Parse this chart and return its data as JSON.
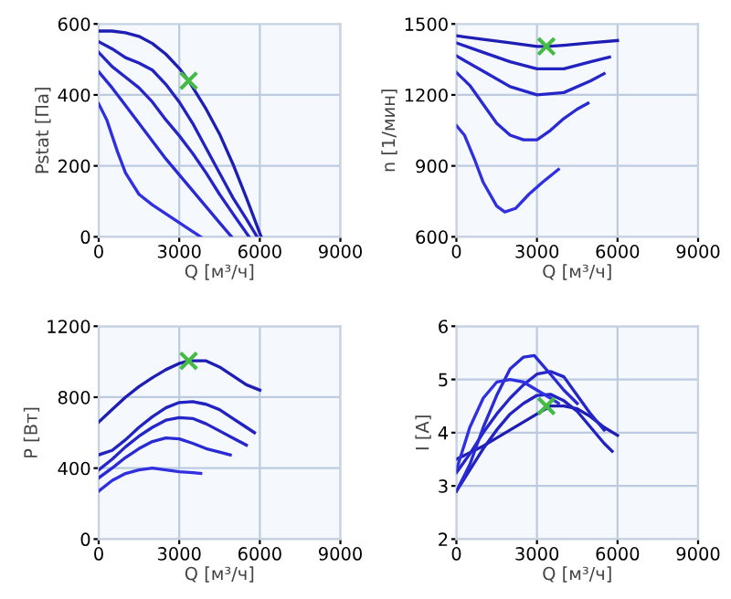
{
  "chart_data": [
    {
      "type": "line",
      "xlabel": "Q [м³/ч]",
      "ylabel": "Pstat [Па]",
      "xlim": [
        0,
        9000
      ],
      "xticks": [
        0,
        3000,
        6000,
        9000
      ],
      "ylim": [
        0,
        600
      ],
      "yticks": [
        0,
        200,
        400,
        600
      ],
      "grid": true,
      "series": [
        {
          "color": "#1e1eb4",
          "x": [
            0,
            500,
            1000,
            1500,
            2000,
            2500,
            3000,
            3350,
            4000,
            4500,
            5000,
            5500,
            6050
          ],
          "values": [
            580,
            580,
            575,
            565,
            545,
            515,
            475,
            440,
            360,
            290,
            205,
            110,
            0
          ]
        },
        {
          "color": "#2222c0",
          "x": [
            0,
            500,
            1000,
            1500,
            2000,
            2500,
            3000,
            3500,
            4000,
            4500,
            5000,
            5500,
            5900
          ],
          "values": [
            550,
            530,
            505,
            490,
            470,
            430,
            380,
            320,
            250,
            180,
            110,
            50,
            0
          ]
        },
        {
          "color": "#2626c8",
          "x": [
            0,
            500,
            1000,
            1500,
            2000,
            2500,
            3000,
            3500,
            4000,
            4500,
            5000,
            5600
          ],
          "values": [
            520,
            480,
            450,
            420,
            380,
            330,
            285,
            235,
            180,
            120,
            65,
            0
          ]
        },
        {
          "color": "#2a2ad4",
          "x": [
            0,
            500,
            1000,
            1500,
            2000,
            2500,
            3000,
            3500,
            4000,
            4500,
            4950
          ],
          "values": [
            465,
            420,
            370,
            320,
            270,
            220,
            175,
            130,
            85,
            40,
            0
          ]
        },
        {
          "color": "#3030e0",
          "x": [
            0,
            300,
            700,
            1000,
            1500,
            2000,
            2500,
            3000,
            3500,
            3800
          ],
          "values": [
            375,
            330,
            240,
            180,
            120,
            90,
            65,
            40,
            15,
            0
          ]
        },
        {
          "type": "scatter",
          "marker": "cross",
          "color": "#44bb44",
          "x": [
            3350
          ],
          "values": [
            440
          ]
        }
      ]
    },
    {
      "type": "line",
      "xlabel": "Q [м³/ч]",
      "ylabel": "n [1/мин]",
      "xlim": [
        0,
        9000
      ],
      "xticks": [
        0,
        3000,
        6000,
        9000
      ],
      "ylim": [
        600,
        1500
      ],
      "yticks": [
        600,
        900,
        1200,
        1500
      ],
      "grid": true,
      "series": [
        {
          "color": "#1e1eb4",
          "x": [
            0,
            1000,
            2000,
            3000,
            3350,
            4000,
            5000,
            6000
          ],
          "values": [
            1450,
            1435,
            1420,
            1405,
            1405,
            1410,
            1420,
            1430
          ]
        },
        {
          "color": "#2222c0",
          "x": [
            0,
            1000,
            2000,
            3000,
            4000,
            5000,
            5700
          ],
          "values": [
            1420,
            1380,
            1340,
            1310,
            1310,
            1340,
            1360
          ]
        },
        {
          "color": "#2626c8",
          "x": [
            0,
            1000,
            2000,
            3000,
            4000,
            5000,
            5500
          ],
          "values": [
            1365,
            1300,
            1235,
            1200,
            1210,
            1260,
            1290
          ]
        },
        {
          "color": "#2a2ad4",
          "x": [
            0,
            500,
            1000,
            1500,
            2000,
            2500,
            3000,
            3500,
            4000,
            4500,
            4900
          ],
          "values": [
            1295,
            1240,
            1160,
            1080,
            1030,
            1010,
            1010,
            1050,
            1100,
            1140,
            1165
          ]
        },
        {
          "color": "#3030e0",
          "x": [
            0,
            300,
            700,
            1000,
            1500,
            1800,
            2200,
            2700,
            3200,
            3800
          ],
          "values": [
            1070,
            1030,
            920,
            830,
            730,
            705,
            720,
            780,
            830,
            885
          ]
        },
        {
          "type": "scatter",
          "marker": "cross",
          "color": "#44bb44",
          "x": [
            3350
          ],
          "values": [
            1405
          ]
        }
      ]
    },
    {
      "type": "line",
      "xlabel": "Q [м³/ч]",
      "ylabel": "P [Вт]",
      "xlim": [
        0,
        9000
      ],
      "xticks": [
        0,
        3000,
        6000,
        9000
      ],
      "ylim": [
        0,
        1200
      ],
      "yticks": [
        0,
        400,
        800,
        1200
      ],
      "grid": true,
      "series": [
        {
          "color": "#1e1eb4",
          "x": [
            0,
            500,
            1000,
            1500,
            2000,
            2500,
            3000,
            3350,
            4000,
            4500,
            5000,
            5500,
            6000
          ],
          "values": [
            660,
            730,
            800,
            860,
            910,
            955,
            990,
            1005,
            1005,
            970,
            920,
            870,
            840
          ]
        },
        {
          "color": "#2222c0",
          "x": [
            0,
            500,
            1000,
            1500,
            2000,
            2500,
            3000,
            3500,
            4000,
            4500,
            5000,
            5500,
            5800
          ],
          "values": [
            475,
            500,
            560,
            630,
            690,
            740,
            770,
            775,
            760,
            730,
            680,
            630,
            600
          ]
        },
        {
          "color": "#2626c8",
          "x": [
            0,
            500,
            1000,
            1500,
            2000,
            2500,
            3000,
            3500,
            4000,
            4500,
            5000,
            5500
          ],
          "values": [
            390,
            450,
            520,
            580,
            630,
            670,
            685,
            680,
            650,
            610,
            570,
            530
          ]
        },
        {
          "color": "#2a2ad4",
          "x": [
            0,
            500,
            1000,
            1500,
            2000,
            2500,
            3000,
            3500,
            4000,
            4500,
            4900
          ],
          "values": [
            345,
            400,
            460,
            510,
            550,
            570,
            565,
            540,
            510,
            490,
            475
          ]
        },
        {
          "color": "#3030e0",
          "x": [
            0,
            500,
            1000,
            1500,
            2000,
            2500,
            3000,
            3500,
            3800
          ],
          "values": [
            270,
            330,
            370,
            390,
            400,
            390,
            380,
            375,
            370
          ]
        },
        {
          "type": "scatter",
          "marker": "cross",
          "color": "#44bb44",
          "x": [
            3350
          ],
          "values": [
            1005
          ]
        }
      ]
    },
    {
      "type": "line",
      "xlabel": "Q [м³/ч]",
      "ylabel": "I [A]",
      "xlim": [
        0,
        9000
      ],
      "xticks": [
        0,
        3000,
        6000,
        9000
      ],
      "ylim": [
        2,
        6
      ],
      "yticks": [
        2,
        3,
        4,
        5,
        6
      ],
      "grid": true,
      "series": [
        {
          "color": "#1e1eb4",
          "x": [
            0,
            1000,
            2000,
            3000,
            3500,
            4000,
            4500,
            5000,
            5500,
            6000
          ],
          "values": [
            3.5,
            3.75,
            4.05,
            4.35,
            4.5,
            4.5,
            4.45,
            4.3,
            4.1,
            3.95
          ]
        },
        {
          "color": "#2222c0",
          "x": [
            0,
            500,
            1000,
            1500,
            2000,
            2500,
            3000,
            3500,
            4000,
            4500,
            5000,
            5500,
            5800
          ],
          "values": [
            2.9,
            3.3,
            3.7,
            4.05,
            4.35,
            4.55,
            4.7,
            4.72,
            4.6,
            4.4,
            4.1,
            3.8,
            3.65
          ]
        },
        {
          "color": "#2626c8",
          "x": [
            0,
            500,
            1000,
            1500,
            2000,
            2500,
            3000,
            3500,
            4000,
            4500,
            5000,
            5500
          ],
          "values": [
            3.25,
            3.6,
            4.0,
            4.35,
            4.65,
            4.9,
            5.1,
            5.15,
            5.05,
            4.7,
            4.35,
            4.05
          ]
        },
        {
          "color": "#2a2ad4",
          "x": [
            0,
            500,
            1000,
            1500,
            2000,
            2500,
            2900,
            3500,
            4000,
            4500
          ],
          "values": [
            2.9,
            3.4,
            4.1,
            4.7,
            5.2,
            5.42,
            5.45,
            5.1,
            4.8,
            4.55
          ]
        },
        {
          "color": "#3030e0",
          "x": [
            0,
            500,
            1000,
            1500,
            2000,
            2500,
            3000,
            3500,
            3800
          ],
          "values": [
            3.3,
            4.1,
            4.65,
            4.95,
            5.0,
            4.95,
            4.8,
            4.65,
            4.55
          ]
        },
        {
          "type": "scatter",
          "marker": "cross",
          "color": "#44bb44",
          "x": [
            3350
          ],
          "values": [
            4.5
          ]
        }
      ]
    }
  ]
}
